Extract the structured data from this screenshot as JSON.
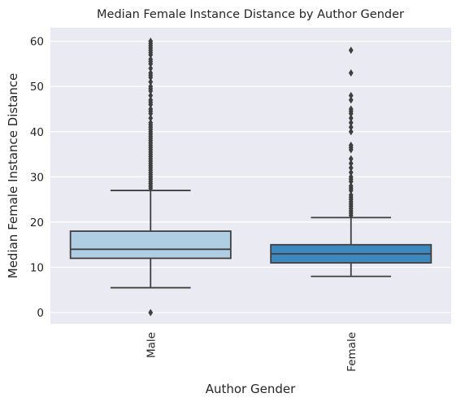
{
  "chart_data": {
    "type": "box",
    "title": "Median Female Instance Distance by Author Gender",
    "xlabel": "Author Gender",
    "ylabel": "Median Female Instance Distance",
    "ylim": [
      -2.5,
      63
    ],
    "yticks": [
      0,
      10,
      20,
      30,
      40,
      50,
      60
    ],
    "grid": true,
    "categories": [
      "Male",
      "Female"
    ],
    "colors": [
      "#afcde3",
      "#3d88bf"
    ],
    "boxes": [
      {
        "category": "Male",
        "q1": 12,
        "median": 14,
        "q3": 18,
        "whisker_low": 5.5,
        "whisker_high": 27,
        "outliers": [
          0,
          27.5,
          28,
          28.5,
          29,
          29.5,
          30,
          30.5,
          31,
          31.5,
          32,
          32.5,
          33,
          33.5,
          34,
          34.5,
          35,
          35.5,
          36,
          36.5,
          37,
          37.5,
          38,
          38.5,
          39,
          39.5,
          40,
          40.5,
          41,
          41.5,
          42,
          43,
          44,
          44.5,
          45,
          46,
          46.5,
          47,
          48,
          49,
          49.5,
          50,
          51,
          52,
          52.5,
          53,
          54,
          55,
          55.5,
          56,
          57,
          57.5,
          58,
          58.5,
          59,
          59.5,
          60
        ]
      },
      {
        "category": "Female",
        "q1": 11,
        "median": 13,
        "q3": 15,
        "whisker_low": 8,
        "whisker_high": 21,
        "outliers": [
          21.5,
          22,
          22.5,
          23,
          23.5,
          24,
          24.5,
          25,
          25.5,
          26,
          27,
          27.5,
          28,
          29,
          29.5,
          30,
          31,
          32,
          33,
          34,
          36,
          36.5,
          37,
          40,
          41,
          42,
          43,
          44,
          44.5,
          45,
          47,
          48,
          53,
          58
        ]
      }
    ]
  }
}
